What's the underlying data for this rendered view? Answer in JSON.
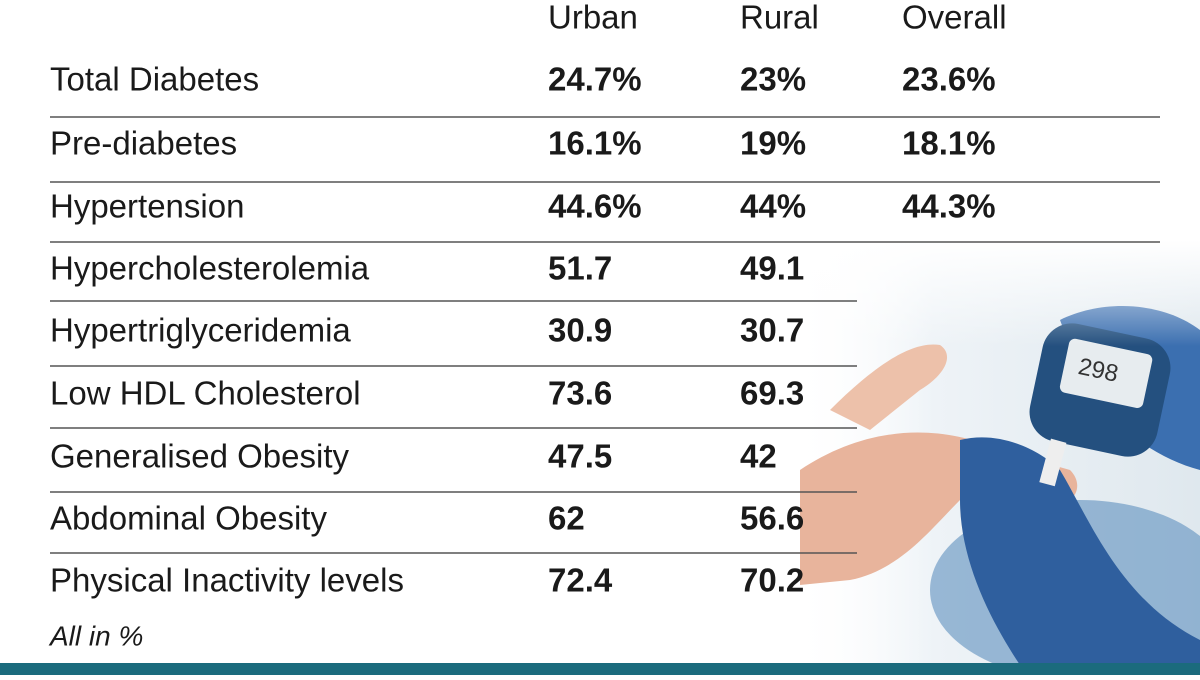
{
  "table": {
    "columns": [
      "Urban",
      "Rural",
      "Overall"
    ],
    "rows": [
      [
        "Total Diabetes",
        "24.7%",
        "23%",
        "23.6%"
      ],
      [
        "Pre-diabetes",
        "16.1%",
        "19%",
        "18.1%"
      ],
      [
        "Hypertension",
        "44.6%",
        "44%",
        "44.3%"
      ],
      [
        "Hypercholesterolemia",
        "51.7",
        "49.1"
      ],
      [
        "Hypertriglyceridemia",
        "30.9",
        "30.7"
      ],
      [
        "Low HDL Cholesterol",
        "73.6",
        "69.3"
      ],
      [
        "Generalised Obesity",
        "47.5",
        "42"
      ],
      [
        "Abdominal Obesity",
        "62",
        "56.6"
      ],
      [
        "Physical Inactivity levels",
        "72.4",
        "70.2"
      ]
    ],
    "note": "All in %"
  }
}
